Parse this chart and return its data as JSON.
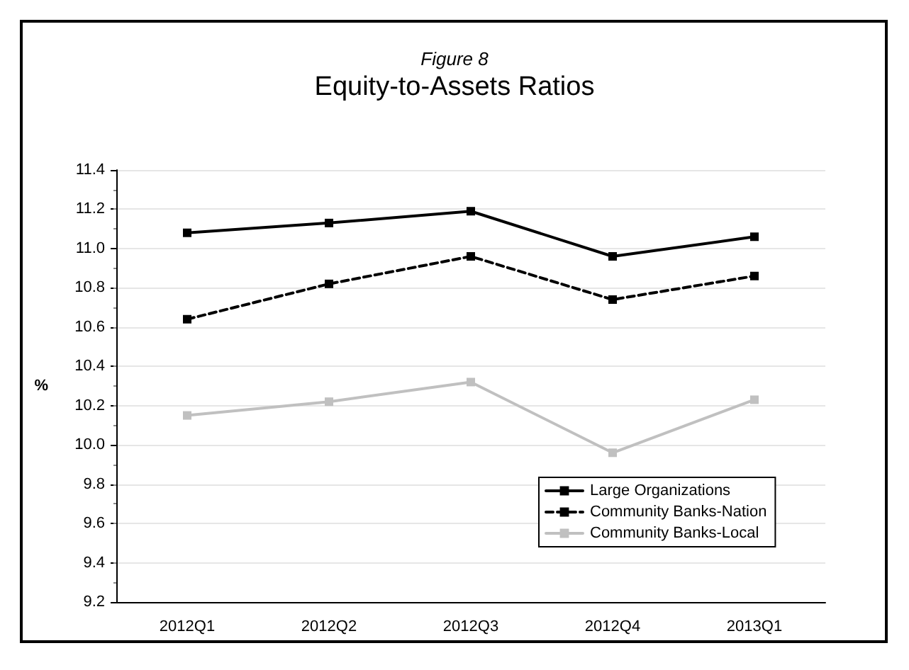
{
  "chart_data": {
    "type": "line",
    "subtitle": "Figure 8",
    "title": "Equity-to-Assets Ratios",
    "ylabel": "%",
    "categories": [
      "2012Q1",
      "2012Q2",
      "2012Q3",
      "2012Q4",
      "2013Q1"
    ],
    "series": [
      {
        "name": "Large Organizations",
        "color": "#000000",
        "line_style": "solid",
        "values": [
          11.08,
          11.13,
          11.19,
          10.96,
          11.06
        ]
      },
      {
        "name": "Community Banks-Nation",
        "color": "#000000",
        "line_style": "dashed",
        "values": [
          10.64,
          10.82,
          10.96,
          10.74,
          10.86
        ]
      },
      {
        "name": "Community Banks-Local",
        "color": "#c0c0c0",
        "line_style": "solid",
        "values": [
          10.15,
          10.22,
          10.32,
          9.96,
          10.23
        ]
      }
    ],
    "ylim": [
      9.2,
      11.4
    ],
    "yticks": [
      9.2,
      9.4,
      9.6,
      9.8,
      {
        "value": 10,
        "label": "10.0"
      },
      10.2,
      10.4,
      10.6,
      10.8,
      {
        "value": 11,
        "label": "11.0"
      },
      11.2,
      11.4
    ],
    "grid": "y",
    "legend": "bottom right",
    "marker": "square"
  }
}
